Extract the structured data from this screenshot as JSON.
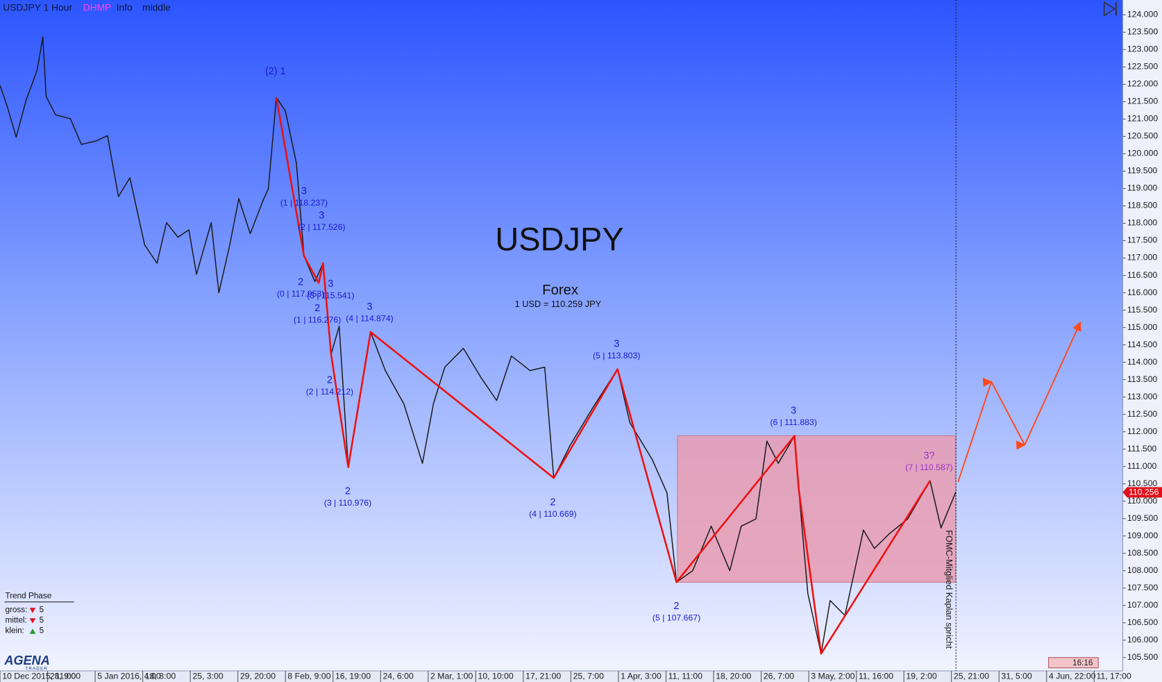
{
  "header": [
    "USDJPY 1 Hour",
    "DHMP",
    "Info",
    "middle"
  ],
  "chart_data": {
    "type": "line",
    "title": "USDJPY",
    "subtitle": "Forex",
    "quote": "1 USD = 110.259 JPY",
    "xlim": [
      0,
      23.6
    ],
    "xticks": [
      {
        "value": 0,
        "label": "10 Dec 2015, 11:00"
      },
      {
        "value": 1,
        "label": "28, 9:00"
      },
      {
        "value": 2,
        "label": "5 Jan 2016, 4:00"
      },
      {
        "value": 3,
        "label": "18, 8:00"
      },
      {
        "value": 4,
        "label": "25, 3:00"
      },
      {
        "value": 5,
        "label": "29, 20:00"
      },
      {
        "value": 6,
        "label": "8 Feb, 9:00"
      },
      {
        "value": 7,
        "label": "16, 19:00"
      },
      {
        "value": 8,
        "label": "24, 6:00"
      },
      {
        "value": 9,
        "label": "2 Mar, 1:00"
      },
      {
        "value": 10,
        "label": "10, 10:00"
      },
      {
        "value": 11,
        "label": "17, 21:00"
      },
      {
        "value": 12,
        "label": "25, 7:00"
      },
      {
        "value": 13,
        "label": "1 Apr, 3:00"
      },
      {
        "value": 14,
        "label": "11, 11:00"
      },
      {
        "value": 15,
        "label": "18, 20:00"
      },
      {
        "value": 16,
        "label": "26, 7:00"
      },
      {
        "value": 17,
        "label": "3 May, 2:00"
      },
      {
        "value": 18,
        "label": "11, 16:00"
      },
      {
        "value": 19,
        "label": "19, 2:00"
      },
      {
        "value": 20,
        "label": "25, 21:00"
      },
      {
        "value": 21,
        "label": "31, 5:00"
      },
      {
        "value": 22,
        "label": "4 Jun, 22:00"
      },
      {
        "value": 23,
        "label": "11, 17:00"
      }
    ],
    "ylim": [
      105.116,
      124.427
    ],
    "yticks": [
      {
        "value": 105.5,
        "label": "105.500"
      },
      {
        "value": 106,
        "label": "106.000"
      },
      {
        "value": 106.5,
        "label": "106.500"
      },
      {
        "value": 107,
        "label": "107.000"
      },
      {
        "value": 107.5,
        "label": "107.500"
      },
      {
        "value": 108,
        "label": "108.000"
      },
      {
        "value": 108.5,
        "label": "108.500"
      },
      {
        "value": 109,
        "label": "109.000"
      },
      {
        "value": 109.5,
        "label": "109.500"
      },
      {
        "value": 110,
        "label": "110.000"
      },
      {
        "value": 110.5,
        "label": "110.500"
      },
      {
        "value": 111,
        "label": "111.000"
      },
      {
        "value": 111.5,
        "label": "111.500"
      },
      {
        "value": 112,
        "label": "112.000"
      },
      {
        "value": 112.5,
        "label": "112.500"
      },
      {
        "value": 113,
        "label": "113.000"
      },
      {
        "value": 113.5,
        "label": "113.500"
      },
      {
        "value": 114,
        "label": "114.000"
      },
      {
        "value": 114.5,
        "label": "114.500"
      },
      {
        "value": 115,
        "label": "115.000"
      },
      {
        "value": 115.5,
        "label": "115.500"
      },
      {
        "value": 116,
        "label": "116.000"
      },
      {
        "value": 116.5,
        "label": "116.500"
      },
      {
        "value": 117,
        "label": "117.000"
      },
      {
        "value": 117.5,
        "label": "117.500"
      },
      {
        "value": 118,
        "label": "118.000"
      },
      {
        "value": 118.5,
        "label": "118.500"
      },
      {
        "value": 119,
        "label": "119.000"
      },
      {
        "value": 119.5,
        "label": "119.500"
      },
      {
        "value": 120,
        "label": "120.000"
      },
      {
        "value": 120.5,
        "label": "120.500"
      },
      {
        "value": 121,
        "label": "121.000"
      },
      {
        "value": 121.5,
        "label": "121.500"
      },
      {
        "value": 122,
        "label": "122.000"
      },
      {
        "value": 122.5,
        "label": "122.500"
      },
      {
        "value": 123,
        "label": "123.000"
      },
      {
        "value": 123.5,
        "label": "123.500"
      },
      {
        "value": 124,
        "label": "124.000"
      }
    ],
    "series": [
      {
        "color": "#1a1a1a",
        "x": [
          0,
          0.16,
          0.34,
          0.55,
          0.78,
          0.9,
          0.97,
          1.17,
          1.48,
          1.71,
          2.02,
          2.26,
          2.49,
          2.73,
          3.04,
          3.3,
          3.5,
          3.74,
          3.97,
          4.13,
          4.44,
          4.6,
          4.83,
          5.02,
          5.26,
          5.53,
          5.64,
          5.81,
          6,
          6.23,
          6.39,
          6.62,
          6.79,
          6.96,
          7.13,
          7.32,
          7.55,
          7.79,
          8.1,
          8.49,
          8.88,
          9.11,
          9.35,
          9.74,
          10.12,
          10.44,
          10.75,
          11.14,
          11.45,
          11.64,
          11.99,
          12.46,
          12.98,
          13.24,
          13.71,
          14.02,
          14.22,
          14.56,
          14.95,
          15.34,
          15.58,
          15.89,
          16.12,
          16.36,
          16.7,
          16.79,
          16.98,
          17.26,
          17.45,
          17.76,
          18.15,
          18.38,
          18.69,
          19.08,
          19.55,
          19.78,
          20.09
        ],
        "values": [
          121.97,
          121.33,
          120.48,
          121.55,
          122.4,
          123.36,
          121.65,
          121.12,
          121.01,
          120.27,
          120.37,
          120.52,
          118.77,
          119.31,
          117.38,
          116.85,
          118.02,
          117.6,
          117.81,
          116.53,
          118.02,
          116,
          117.38,
          118.71,
          117.7,
          118.66,
          118.99,
          121.62,
          121.23,
          119.73,
          117.06,
          116.32,
          116.85,
          114.23,
          115.04,
          110.98,
          112.9,
          114.87,
          113.76,
          112.8,
          111.09,
          112.8,
          113.86,
          114.4,
          113.54,
          112.9,
          114.18,
          113.76,
          113.86,
          110.67,
          111.62,
          112.69,
          113.8,
          112.26,
          111.2,
          110.24,
          107.67,
          108,
          109.28,
          108,
          109.28,
          109.49,
          111.73,
          111.09,
          111.88,
          110.34,
          107.35,
          105.61,
          107.14,
          106.71,
          109.17,
          108.64,
          109.06,
          109.49,
          110.59,
          109.23,
          110.26
        ]
      },
      {
        "color": "#ee1111",
        "x": [
          5.81,
          6.39,
          6.7,
          6.79,
          6.96,
          7.32,
          7.79,
          11.64,
          12.98,
          14.22,
          16.7,
          16.79,
          17.26,
          19.55
        ],
        "values": [
          121.62,
          117.06,
          116.28,
          116.85,
          114.23,
          110.98,
          114.87,
          110.67,
          113.8,
          107.67,
          111.88,
          110.34,
          105.61,
          110.59
        ]
      },
      {
        "color": "#ff4a1c",
        "arrows": true,
        "x": [
          20.14,
          20.84,
          21.54,
          22.71
        ],
        "values": [
          110.56,
          113.44,
          111.62,
          115.15
        ]
      }
    ],
    "zone": {
      "x": [
        14.24,
        20.09
      ],
      "y": [
        107.667,
        111.883
      ],
      "color": "#e99cb2"
    },
    "annotations": [
      {
        "label": "(2) 1",
        "x": 5.79,
        "y": 122.36,
        "color": "#1a1acc"
      },
      {
        "label": "3",
        "sub": "(1 | 118.237)",
        "x": 6.39,
        "y": 118.92,
        "color": "#1a1acc"
      },
      {
        "label": "3",
        "sub": "(2 | 117.526)",
        "x": 6.76,
        "y": 118.22,
        "color": "#1a1acc"
      },
      {
        "label": "2",
        "sub": "(0 | 117.953)",
        "x": 6.32,
        "y": 116.3,
        "color": "#1a1acc"
      },
      {
        "label": "3",
        "sub": "(3 | 115.541)",
        "x": 6.95,
        "y": 116.25,
        "color": "#1a1acc"
      },
      {
        "label": "2",
        "sub": "(1 | 116.276)",
        "x": 6.67,
        "y": 115.55,
        "color": "#1a1acc"
      },
      {
        "label": "3",
        "sub": "(4 | 114.874)",
        "x": 7.77,
        "y": 115.59,
        "color": "#1a1acc"
      },
      {
        "label": "2",
        "sub": "(2 | 114.212)",
        "x": 6.93,
        "y": 113.48,
        "color": "#1a1acc"
      },
      {
        "label": "2",
        "sub": "(3 | 110.976)",
        "x": 7.31,
        "y": 110.28,
        "color": "#1a1acc"
      },
      {
        "label": "3",
        "sub": "(5 | 113.803)",
        "x": 12.96,
        "y": 114.52,
        "color": "#1a1acc"
      },
      {
        "label": "2",
        "sub": "(4 | 110.669)",
        "x": 11.62,
        "y": 109.96,
        "color": "#1a1acc"
      },
      {
        "label": "2",
        "sub": "(5 | 107.667)",
        "x": 14.22,
        "y": 106.97,
        "color": "#1a1acc"
      },
      {
        "label": "3",
        "sub": "(6 | 111.883)",
        "x": 16.68,
        "y": 112.6,
        "color": "#1a1acc"
      },
      {
        "label": "3?",
        "sub": "(7 | 110.587)",
        "x": 19.53,
        "y": 111.3,
        "color": "#9a33cc"
      }
    ],
    "last_price": 110.256,
    "event": "FOMC-Mitglied Kaplan spricht"
  },
  "trend_phase": {
    "title": "Trend Phase",
    "rows": [
      {
        "label": "gross:",
        "direction": "down",
        "value": 5
      },
      {
        "label": "mittel:",
        "direction": "down",
        "value": 5
      },
      {
        "label": "klein:",
        "direction": "up",
        "value": 5
      }
    ]
  },
  "clock": "16:16",
  "brand": [
    "AGENA",
    "TRADER"
  ]
}
